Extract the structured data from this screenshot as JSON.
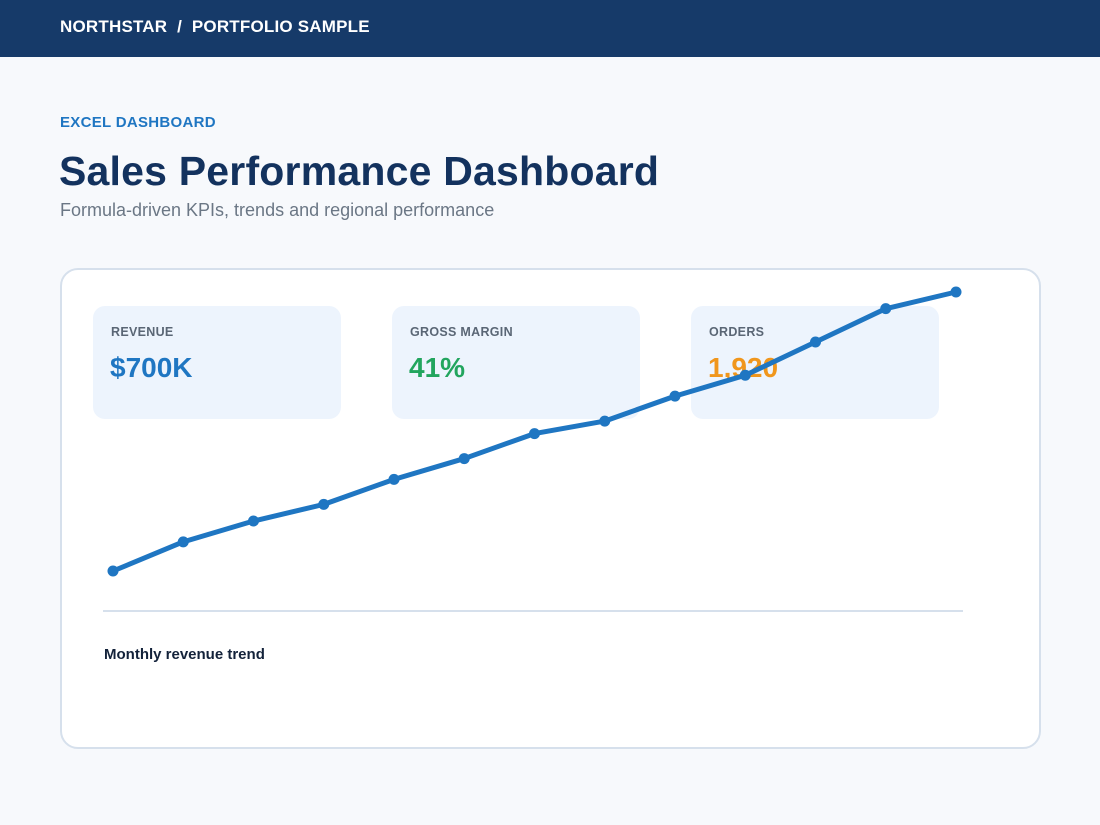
{
  "header": {
    "breadcrumb": "NORTHSTAR  /  PORTFOLIO SAMPLE"
  },
  "hero": {
    "eyebrow": "EXCEL DASHBOARD",
    "title": "Sales Performance Dashboard",
    "subtitle": "Formula-driven KPIs, trends and regional performance"
  },
  "kpis": [
    {
      "label": "REVENUE",
      "value": "$700K",
      "color": "#1f76c2"
    },
    {
      "label": "GROSS MARGIN",
      "value": "41%",
      "color": "#22a55e"
    },
    {
      "label": "ORDERS",
      "value": "1,920",
      "color": "#f0961c"
    }
  ],
  "chart": {
    "caption": "Monthly revenue trend",
    "line_color": "#1f76c2",
    "axis_color": "#d6e0ec"
  },
  "chart_data": {
    "type": "line",
    "title": "Monthly revenue trend",
    "x": [
      1,
      2,
      3,
      4,
      5,
      6,
      7,
      8,
      9,
      10,
      11,
      12,
      13
    ],
    "series": [
      {
        "values": [
          20,
          27,
          32,
          36,
          42,
          47,
          53,
          56,
          62,
          67,
          75,
          83,
          87
        ]
      }
    ],
    "ylim": [
      10,
      90
    ],
    "grid": false
  }
}
